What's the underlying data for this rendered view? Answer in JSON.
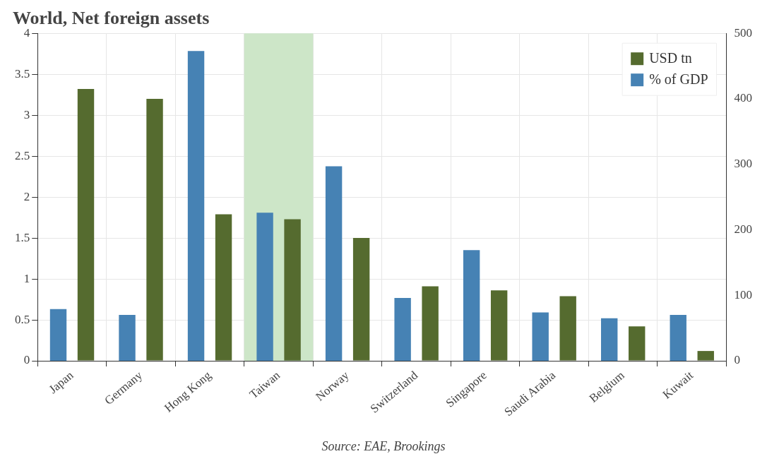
{
  "chart_data": {
    "type": "bar",
    "title": "World, Net foreign assets",
    "categories": [
      "Japan",
      "Germany",
      "Hong Kong",
      "Taiwan",
      "Norway",
      "Switzerland",
      "Singapore",
      "Saudi Arabia",
      "Belgium",
      "Kuwait"
    ],
    "series": [
      {
        "name": "USD tn",
        "color": "#556b2f",
        "values": [
          3.32,
          3.2,
          1.79,
          1.73,
          1.5,
          0.91,
          0.86,
          0.79,
          0.42,
          0.12
        ]
      },
      {
        "name": "% of GDP",
        "color": "#4682b4",
        "axis": "y2",
        "values": [
          79,
          70,
          473,
          226,
          297,
          96,
          169,
          74,
          65,
          70
        ]
      }
    ],
    "ylim": [
      0,
      4
    ],
    "yticks": [
      0,
      {
        "value": 0.5,
        "label": "0.5"
      },
      1,
      {
        "value": 1.5,
        "label": "1.5"
      },
      2,
      {
        "value": 2.5,
        "label": "2.5"
      },
      3,
      {
        "value": 3.5,
        "label": "3.5"
      },
      4
    ],
    "y2lim": [
      0,
      500
    ],
    "y2ticks": [
      0,
      100,
      200,
      300,
      400,
      500
    ],
    "bands": [
      {
        "axis": "x",
        "from": "Taiwan",
        "to": "Taiwan",
        "color": "#cde6c8"
      }
    ],
    "grid": true,
    "legend": "top right",
    "annotations": [
      "Source: EAE, Brookings"
    ]
  }
}
